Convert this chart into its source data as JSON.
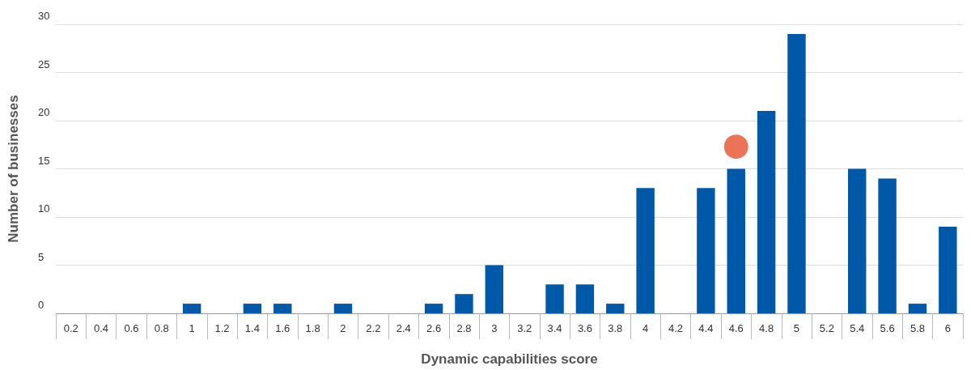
{
  "chart_data": {
    "type": "bar",
    "xlabel": "Dynamic capabilities score",
    "ylabel": "Number of businesses",
    "categories": [
      "0.2",
      "0.4",
      "0.6",
      "0.8",
      "1",
      "1.2",
      "1.4",
      "1.6",
      "1.8",
      "2",
      "2.2",
      "2.4",
      "2.6",
      "2.8",
      "3",
      "3.2",
      "3.4",
      "3.6",
      "3.8",
      "4",
      "4.2",
      "4.4",
      "4.6",
      "4.8",
      "5",
      "5.2",
      "5.4",
      "5.6",
      "5.8",
      "6"
    ],
    "series": [
      {
        "color": "#0058a9",
        "values": [
          0,
          0,
          0,
          0,
          1,
          0,
          1,
          1,
          0,
          1,
          0,
          0,
          1,
          2,
          5,
          0,
          3,
          3,
          1,
          13,
          0,
          13,
          15,
          21,
          29,
          0,
          15,
          14,
          1,
          9
        ]
      },
      {
        "type": "scatter",
        "color": "#e8502c",
        "x": [
          "4.6"
        ],
        "values": [
          17.3
        ]
      }
    ],
    "ylim": [
      0,
      30
    ],
    "yticks": [
      0,
      5,
      10,
      15,
      20,
      25,
      30
    ],
    "grid": "y",
    "marker": "circle"
  }
}
